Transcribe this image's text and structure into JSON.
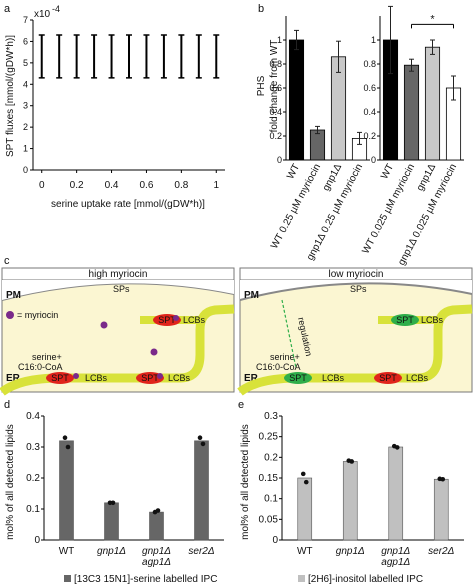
{
  "panels": {
    "a": "a",
    "b": "b",
    "c": "c",
    "d": "d",
    "e": "e"
  },
  "chart_data": [
    {
      "id": "a",
      "type": "scatter",
      "ylabel": "SPT fluxes [mmol/(gDW*h)]",
      "xlabel": "serine uptake rate [mmol/(gDW*h)]",
      "exponent": "x10",
      "exponent_power": "-4",
      "x": [
        0,
        0.1,
        0.2,
        0.3,
        0.4,
        0.5,
        0.6,
        0.7,
        0.8,
        0.9,
        1.0
      ],
      "y_min": [
        4.3,
        4.3,
        4.3,
        4.3,
        4.3,
        4.3,
        4.3,
        4.3,
        4.3,
        4.3,
        4.3
      ],
      "y_max": [
        6.3,
        6.3,
        6.3,
        6.3,
        6.3,
        6.3,
        6.3,
        6.3,
        6.3,
        6.3,
        6.3
      ],
      "xlim": [
        -0.05,
        1.05
      ],
      "ylim": [
        0,
        7
      ],
      "xticks": [
        "0",
        "0.2",
        "0.4",
        "0.6",
        "0.8",
        "1"
      ],
      "yticks": [
        "0",
        "1",
        "2",
        "3",
        "4",
        "5",
        "6",
        "7"
      ]
    },
    {
      "id": "b",
      "type": "bar",
      "ylabel_top": "PHS",
      "ylabel": "fold change from WT",
      "ylim": [
        0,
        1.2
      ],
      "yticks": [
        "0",
        "0.2",
        "0.4",
        "0.6",
        "0.8",
        "1"
      ],
      "groups": [
        {
          "categories": [
            "WT",
            "WT 0.25 µM myriocin",
            "gnp1Δ",
            "gnp1Δ 0.25 µM myriocin"
          ],
          "values": [
            1.0,
            0.25,
            0.86,
            0.18
          ],
          "errors": [
            0.08,
            0.03,
            0.13,
            0.05
          ],
          "colors": [
            "#000000",
            "#666666",
            "#c8c8c8",
            "#ffffff"
          ]
        },
        {
          "categories": [
            "WT",
            "WT 0.025 µM myriocin",
            "gnp1Δ",
            "gnp1Δ 0.025 µM myriocin"
          ],
          "values": [
            1.0,
            0.79,
            0.94,
            0.6
          ],
          "errors": [
            0.28,
            0.05,
            0.06,
            0.1
          ],
          "colors": [
            "#000000",
            "#666666",
            "#c8c8c8",
            "#ffffff"
          ],
          "significance": "*"
        }
      ]
    },
    {
      "id": "d",
      "type": "bar",
      "ylabel": "mol% of all detected lipids",
      "ylim": [
        0,
        0.4
      ],
      "yticks": [
        "0",
        "0.1",
        "0.2",
        "0.3",
        "0.4"
      ],
      "categories": [
        "WT",
        "gnp1Δ",
        "gnp1Δ agp1Δ",
        "ser2Δ"
      ],
      "values": [
        0.32,
        0.12,
        0.09,
        0.32
      ],
      "points": [
        [
          0.33,
          0.3
        ],
        [
          0.12,
          0.12
        ],
        [
          0.09,
          0.095
        ],
        [
          0.33,
          0.31
        ]
      ],
      "color": "#666666",
      "legend": "[13C3 15N1]-serine labelled IPC"
    },
    {
      "id": "e",
      "type": "bar",
      "ylabel": "mol% of all detected lipids",
      "ylim": [
        0,
        0.3
      ],
      "yticks": [
        "0",
        "0.05",
        "0.1",
        "0.15",
        "0.2",
        "0.25",
        "0.3"
      ],
      "categories": [
        "WT",
        "gnp1Δ",
        "gnp1Δ agp1Δ",
        "ser2Δ"
      ],
      "values": [
        0.15,
        0.19,
        0.225,
        0.147
      ],
      "points": [
        [
          0.16,
          0.14
        ],
        [
          0.192,
          0.19
        ],
        [
          0.227,
          0.224
        ],
        [
          0.148,
          0.147
        ]
      ],
      "color": "#c0c0c0",
      "legend": "[2H6]-inositol labelled IPC"
    }
  ],
  "diagram": {
    "left_title": "high myriocin",
    "right_title": "low myriocin",
    "pm": "PM",
    "er": "ER",
    "myriocin_legend": "= myriocin",
    "sps": "SPs",
    "spt": "SPT",
    "lcbs": "LCBs",
    "serine": "serine+",
    "c16": "C16:0-CoA",
    "regulation": "regulation",
    "colors": {
      "cell_bg": "#fbf6d2",
      "membrane": "#d8e23a",
      "membrane_edge": "#8a8f20",
      "spt_high": "#e0241b",
      "spt_low": "#2fae4a",
      "myriocin": "#7a2a8a"
    }
  }
}
